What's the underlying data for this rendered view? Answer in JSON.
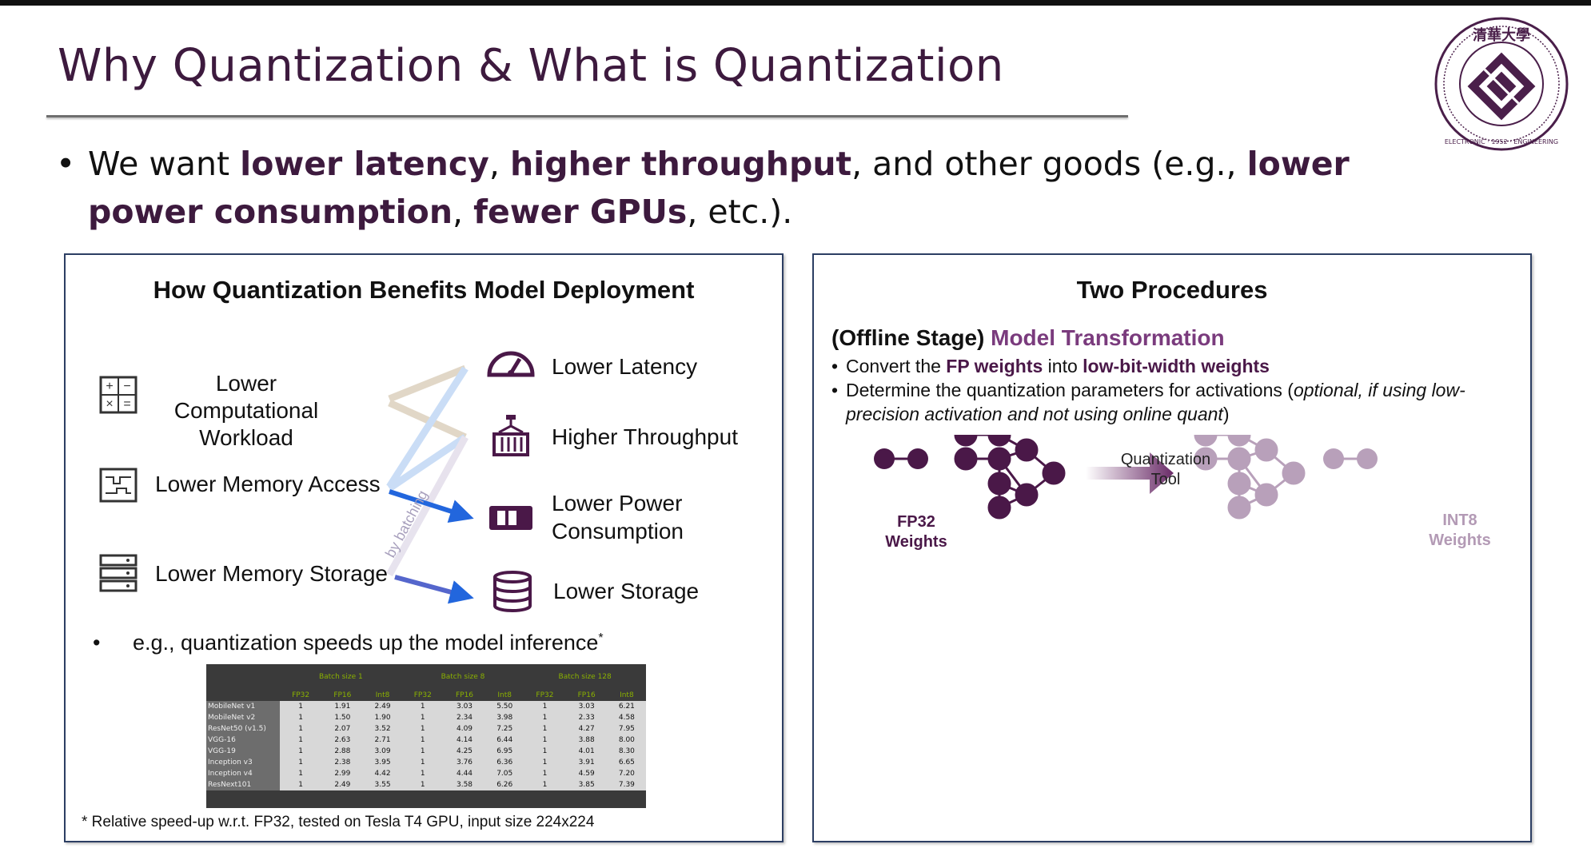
{
  "slide": {
    "title": "Why Quantization & What is Quantization",
    "bullet": {
      "seg1": "We want ",
      "em1": "lower latency",
      "seg2": ", ",
      "em2": "higher throughput",
      "seg3": ", and other goods (e.g., ",
      "em3": "lower power consumption",
      "seg4": ", ",
      "em4": "fewer GPUs",
      "seg5": ", etc.)."
    }
  },
  "logo": {
    "top_text": "清華大學",
    "ring_text": "ELECTRONIC · 1952 · ENGINEERING",
    "colors": {
      "ring": "#4a1f4a",
      "fill": "#4a1f4a"
    }
  },
  "left_panel": {
    "title": "How Quantization Benefits Model Deployment",
    "causes": [
      {
        "label": "Lower Computational Workload",
        "icon": "calculator-icon"
      },
      {
        "label": "Lower Memory Access",
        "icon": "memory-chip-icon"
      },
      {
        "label": "Lower Memory Storage",
        "icon": "server-rack-icon"
      }
    ],
    "effects": [
      {
        "label": "Lower Latency",
        "icon": "speedometer-icon"
      },
      {
        "label": "Higher Throughput",
        "icon": "container-crane-icon"
      },
      {
        "label": "Lower Power Consumption",
        "icon": "battery-icon"
      },
      {
        "label": "Lower Storage",
        "icon": "database-icon"
      }
    ],
    "batching_label": "by batching",
    "example_bullet": "e.g., quantization speeds up the model inference",
    "example_marker": "*",
    "table": {
      "groups": [
        "Batch size 1",
        "Batch size 8",
        "Batch size 128"
      ],
      "sub_headers": [
        "FP32",
        "FP16",
        "Int8",
        "FP32",
        "FP16",
        "Int8",
        "FP32",
        "FP16",
        "Int8"
      ],
      "rows": [
        {
          "model": "MobileNet v1",
          "values": [
            "1",
            "1.91",
            "2.49",
            "1",
            "3.03",
            "5.50",
            "1",
            "3.03",
            "6.21"
          ]
        },
        {
          "model": "MobileNet v2",
          "values": [
            "1",
            "1.50",
            "1.90",
            "1",
            "2.34",
            "3.98",
            "1",
            "2.33",
            "4.58"
          ]
        },
        {
          "model": "ResNet50 (v1.5)",
          "values": [
            "1",
            "2.07",
            "3.52",
            "1",
            "4.09",
            "7.25",
            "1",
            "4.27",
            "7.95"
          ]
        },
        {
          "model": "VGG-16",
          "values": [
            "1",
            "2.63",
            "2.71",
            "1",
            "4.14",
            "6.44",
            "1",
            "3.88",
            "8.00"
          ]
        },
        {
          "model": "VGG-19",
          "values": [
            "1",
            "2.88",
            "3.09",
            "1",
            "4.25",
            "6.95",
            "1",
            "4.01",
            "8.30"
          ]
        },
        {
          "model": "Inception v3",
          "values": [
            "1",
            "2.38",
            "3.95",
            "1",
            "3.76",
            "6.36",
            "1",
            "3.91",
            "6.65"
          ]
        },
        {
          "model": "Inception v4",
          "values": [
            "1",
            "2.99",
            "4.42",
            "1",
            "4.44",
            "7.05",
            "1",
            "4.59",
            "7.20"
          ]
        },
        {
          "model": "ResNext101",
          "values": [
            "1",
            "2.49",
            "3.55",
            "1",
            "3.58",
            "6.26",
            "1",
            "3.85",
            "7.39"
          ]
        }
      ]
    },
    "footnote": "* Relative speed-up w.r.t. FP32, tested on Tesla T4 GPU, input size 224x224"
  },
  "right_panel": {
    "title": "Two Procedures",
    "stage_label": "(Offline Stage)",
    "stage_title": "Model Transformation",
    "bullet1": {
      "a": "Convert the ",
      "b": "FP weights",
      "c": " into ",
      "d": "low-bit-width weights"
    },
    "bullet2": {
      "a": "Determine the quantization parameters for activations (",
      "b": "optional, if using low-precision activation and not using online quant",
      "c": ")"
    },
    "diagram": {
      "fp32_label": "FP32 Weights",
      "tool_label": "Quantization Tool",
      "int8_label": "INT8 Weights",
      "colors": {
        "dark_node": "#4a1848",
        "light_node": "#b8a0ba",
        "light_text": "#b39ab5"
      }
    }
  },
  "colors": {
    "accent": "#3d1a3e",
    "panel_border": "#2c3e63"
  }
}
